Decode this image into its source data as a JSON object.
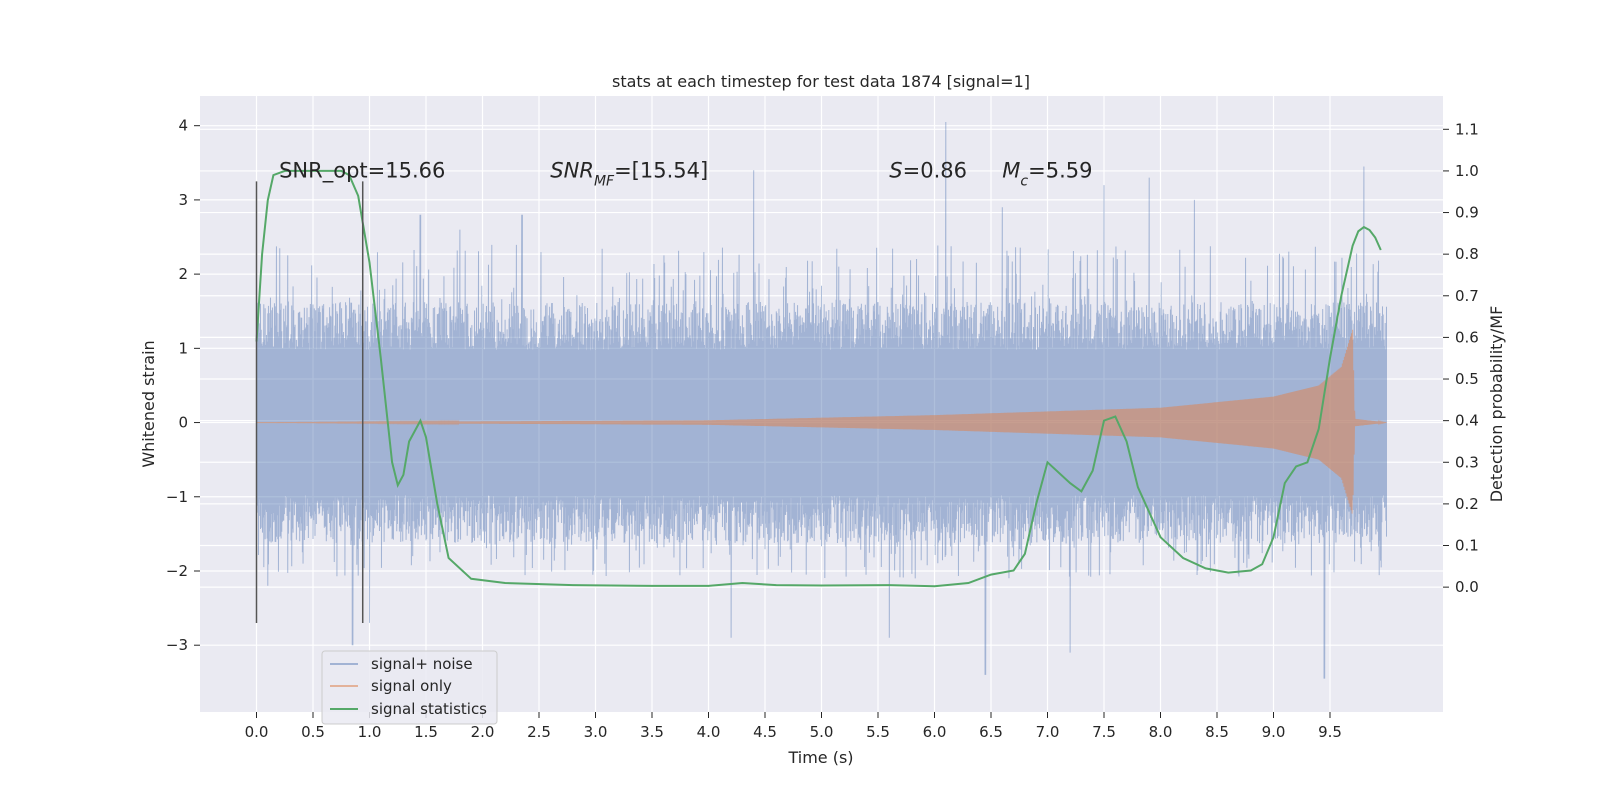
{
  "chart_data": {
    "type": "line",
    "title": "stats at each timestep for test data 1874 [signal=1]",
    "xlabel": "Time (s)",
    "ylabel": "Whitened strain",
    "ylabel_right": "Detection probability/MF",
    "xlim": [
      -0.5,
      10.5
    ],
    "ylim": [
      -3.9,
      4.4
    ],
    "ylim_right": [
      -0.3,
      1.18
    ],
    "x_ticks": [
      0.0,
      0.5,
      1.0,
      1.5,
      2.0,
      2.5,
      3.0,
      3.5,
      4.0,
      4.5,
      5.0,
      5.5,
      6.0,
      6.5,
      7.0,
      7.5,
      8.0,
      8.5,
      9.0,
      9.5
    ],
    "x_tick_labels": [
      "0.0",
      "0.5",
      "1.0",
      "1.5",
      "2.0",
      "2.5",
      "3.0",
      "3.5",
      "4.0",
      "4.5",
      "5.0",
      "5.5",
      "6.0",
      "6.5",
      "7.0",
      "7.5",
      "8.0",
      "8.5",
      "9.0",
      "9.5"
    ],
    "y_ticks": [
      -3,
      -2,
      -1,
      0,
      1,
      2,
      3,
      4
    ],
    "y_tick_labels": [
      "−3",
      "−2",
      "−1",
      "0",
      "1",
      "2",
      "3",
      "4"
    ],
    "y_ticks_right": [
      0.0,
      0.1,
      0.2,
      0.3,
      0.4,
      0.5,
      0.6,
      0.7,
      0.8,
      0.9,
      1.0,
      1.1
    ],
    "y_tick_labels_right": [
      "0.0",
      "0.1",
      "0.2",
      "0.3",
      "0.4",
      "0.5",
      "0.6",
      "0.7",
      "0.8",
      "0.9",
      "1.0",
      "1.1"
    ],
    "grid": true,
    "legend_position": "lower-left",
    "series": [
      {
        "name": "signal+ noise",
        "axis": "left",
        "color": "#4c72b0",
        "kind": "noisy-trace",
        "x_range": [
          0.0,
          10.0
        ],
        "typical_envelope": [
          -1.3,
          1.3
        ],
        "extreme_peaks": [
          {
            "x": 0.0,
            "y": 2.3
          },
          {
            "x": 0.1,
            "y": -2.2
          },
          {
            "x": 0.85,
            "y": -3.0
          },
          {
            "x": 1.0,
            "y": -2.7
          },
          {
            "x": 1.45,
            "y": 2.8
          },
          {
            "x": 1.8,
            "y": 2.6
          },
          {
            "x": 2.35,
            "y": 2.8
          },
          {
            "x": 3.8,
            "y": 2.0
          },
          {
            "x": 4.2,
            "y": -2.9
          },
          {
            "x": 4.4,
            "y": 3.4
          },
          {
            "x": 5.6,
            "y": -2.9
          },
          {
            "x": 6.1,
            "y": 4.05
          },
          {
            "x": 6.45,
            "y": -3.4
          },
          {
            "x": 6.6,
            "y": 2.9
          },
          {
            "x": 7.2,
            "y": -3.1
          },
          {
            "x": 7.5,
            "y": 3.2
          },
          {
            "x": 7.9,
            "y": 3.3
          },
          {
            "x": 8.3,
            "y": 3.0
          },
          {
            "x": 9.45,
            "y": -3.45
          },
          {
            "x": 9.8,
            "y": 3.45
          }
        ]
      },
      {
        "name": "signal only",
        "axis": "left",
        "color": "#dd8452",
        "kind": "chirp",
        "x_range": [
          0.0,
          10.0
        ],
        "amplitude_envelope": [
          {
            "x": 0.0,
            "y": 0.0
          },
          {
            "x": 4.0,
            "y": 0.03
          },
          {
            "x": 6.0,
            "y": 0.1
          },
          {
            "x": 8.0,
            "y": 0.2
          },
          {
            "x": 9.0,
            "y": 0.35
          },
          {
            "x": 9.4,
            "y": 0.5
          },
          {
            "x": 9.6,
            "y": 0.75
          },
          {
            "x": 9.7,
            "y": 1.25
          },
          {
            "x": 9.72,
            "y": 0.05
          },
          {
            "x": 10.0,
            "y": 0.0
          }
        ]
      },
      {
        "name": "signal statistics",
        "axis": "right",
        "color": "#55a868",
        "kind": "line",
        "x": [
          0.0,
          0.05,
          0.1,
          0.15,
          0.25,
          0.4,
          0.6,
          0.75,
          0.82,
          0.9,
          1.0,
          1.1,
          1.2,
          1.25,
          1.3,
          1.35,
          1.45,
          1.5,
          1.6,
          1.7,
          1.9,
          2.2,
          2.8,
          3.5,
          4.0,
          4.3,
          4.6,
          5.0,
          5.6,
          6.0,
          6.3,
          6.5,
          6.7,
          6.8,
          6.9,
          7.0,
          7.2,
          7.3,
          7.4,
          7.5,
          7.6,
          7.7,
          7.8,
          8.0,
          8.2,
          8.4,
          8.6,
          8.8,
          8.9,
          9.0,
          9.1,
          9.2,
          9.3,
          9.4,
          9.5,
          9.6,
          9.7,
          9.75,
          9.8,
          9.85,
          9.9,
          9.95
        ],
        "y": [
          0.59,
          0.8,
          0.93,
          0.99,
          1.0,
          1.0,
          1.0,
          1.0,
          0.99,
          0.94,
          0.78,
          0.55,
          0.3,
          0.245,
          0.27,
          0.35,
          0.4,
          0.36,
          0.2,
          0.07,
          0.02,
          0.01,
          0.005,
          0.003,
          0.003,
          0.01,
          0.005,
          0.004,
          0.005,
          0.002,
          0.01,
          0.03,
          0.04,
          0.08,
          0.2,
          0.3,
          0.25,
          0.23,
          0.28,
          0.4,
          0.41,
          0.35,
          0.24,
          0.12,
          0.07,
          0.045,
          0.035,
          0.04,
          0.055,
          0.12,
          0.25,
          0.29,
          0.3,
          0.38,
          0.55,
          0.7,
          0.82,
          0.855,
          0.865,
          0.858,
          0.84,
          0.81
        ]
      }
    ],
    "vertical_markers": [
      {
        "x": 0.0,
        "y_range": [
          -2.7,
          3.25
        ]
      },
      {
        "x": 0.94,
        "y_range": [
          -2.7,
          3.25
        ]
      }
    ],
    "annotations": [
      {
        "id": "snr-opt",
        "x": 0.2,
        "y": 3.3,
        "parts": [
          {
            "t": "SNR_opt=15.66"
          }
        ]
      },
      {
        "id": "snr-mf",
        "x": 2.6,
        "y": 3.3,
        "parts": [
          {
            "t": "SNR",
            "i": true
          },
          {
            "t": "MF",
            "i": true,
            "sub": true
          },
          {
            "t": "=[15.54]"
          }
        ]
      },
      {
        "id": "s-value",
        "x": 5.6,
        "y": 3.3,
        "parts": [
          {
            "t": "S",
            "i": true
          },
          {
            "t": "=0.86"
          }
        ]
      },
      {
        "id": "mc-value",
        "x": 6.6,
        "y": 3.3,
        "parts": [
          {
            "t": "M",
            "i": true
          },
          {
            "t": "c",
            "i": true,
            "sub": true
          },
          {
            "t": "=5.59"
          }
        ]
      }
    ]
  }
}
